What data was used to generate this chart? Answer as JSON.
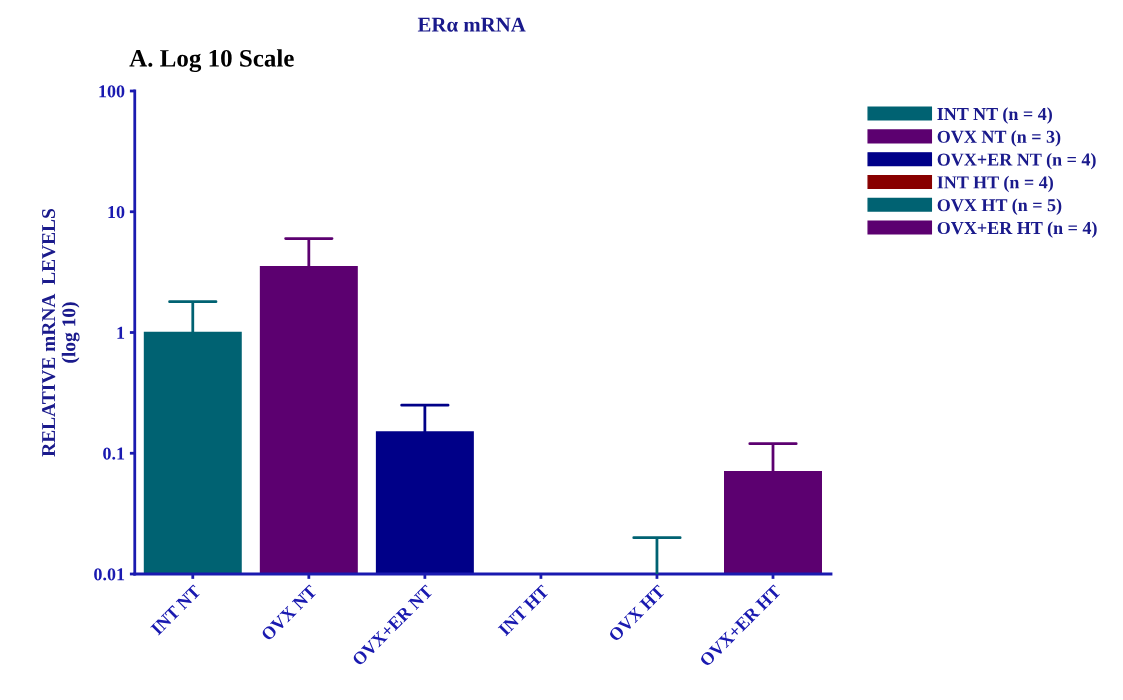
{
  "chart_data": {
    "type": "bar",
    "title": "ERα mRNA",
    "subtitle": "A. Log 10 Scale",
    "ylabel": "RELATIVE mRNA  LEVELS\n(log 10)",
    "categories": [
      "INT NT",
      "OVX NT",
      "OVX+ER NT",
      "INT HT",
      "OVX HT",
      "OVX+ER HT"
    ],
    "series": [
      {
        "name": "INT NT (n = 4)",
        "color": "#006272",
        "values": [
          1.0,
          null,
          null,
          null,
          null,
          null
        ],
        "errors": [
          [
            1.0,
            1.8
          ],
          null,
          null,
          null,
          null,
          null
        ]
      },
      {
        "name": "OVX NT (n = 3)",
        "color": "#5c0070",
        "values": [
          null,
          3.5,
          null,
          null,
          null,
          null
        ],
        "errors": [
          null,
          [
            3.5,
            6.0
          ],
          null,
          null,
          null,
          null
        ]
      },
      {
        "name": "OVX+ER NT (n = 4)",
        "color": "#000088",
        "values": [
          null,
          null,
          0.15,
          null,
          null,
          null
        ],
        "errors": [
          null,
          null,
          [
            0.15,
            0.25
          ],
          null,
          null,
          null
        ]
      },
      {
        "name": "INT HT (n = 4)",
        "color": "#880000",
        "values": [
          null,
          null,
          null,
          null,
          null,
          null
        ]
      },
      {
        "name": "OVX HT (n = 5)",
        "color": "#006272",
        "values": [
          null,
          null,
          null,
          null,
          0.01,
          null
        ],
        "errors": [
          null,
          null,
          null,
          null,
          [
            0.01,
            0.02
          ],
          null
        ]
      },
      {
        "name": "OVX+ER HT (n = 4)",
        "color": "#5c0070",
        "values": [
          null,
          null,
          null,
          null,
          null,
          0.07
        ],
        "errors": [
          null,
          null,
          null,
          null,
          null,
          [
            0.07,
            0.12
          ]
        ]
      }
    ],
    "log": "y",
    "ylim": [
      0.01,
      100
    ],
    "yticks": [
      0.01,
      0.1,
      1,
      10,
      100
    ],
    "grid": false,
    "legend": "top right"
  }
}
